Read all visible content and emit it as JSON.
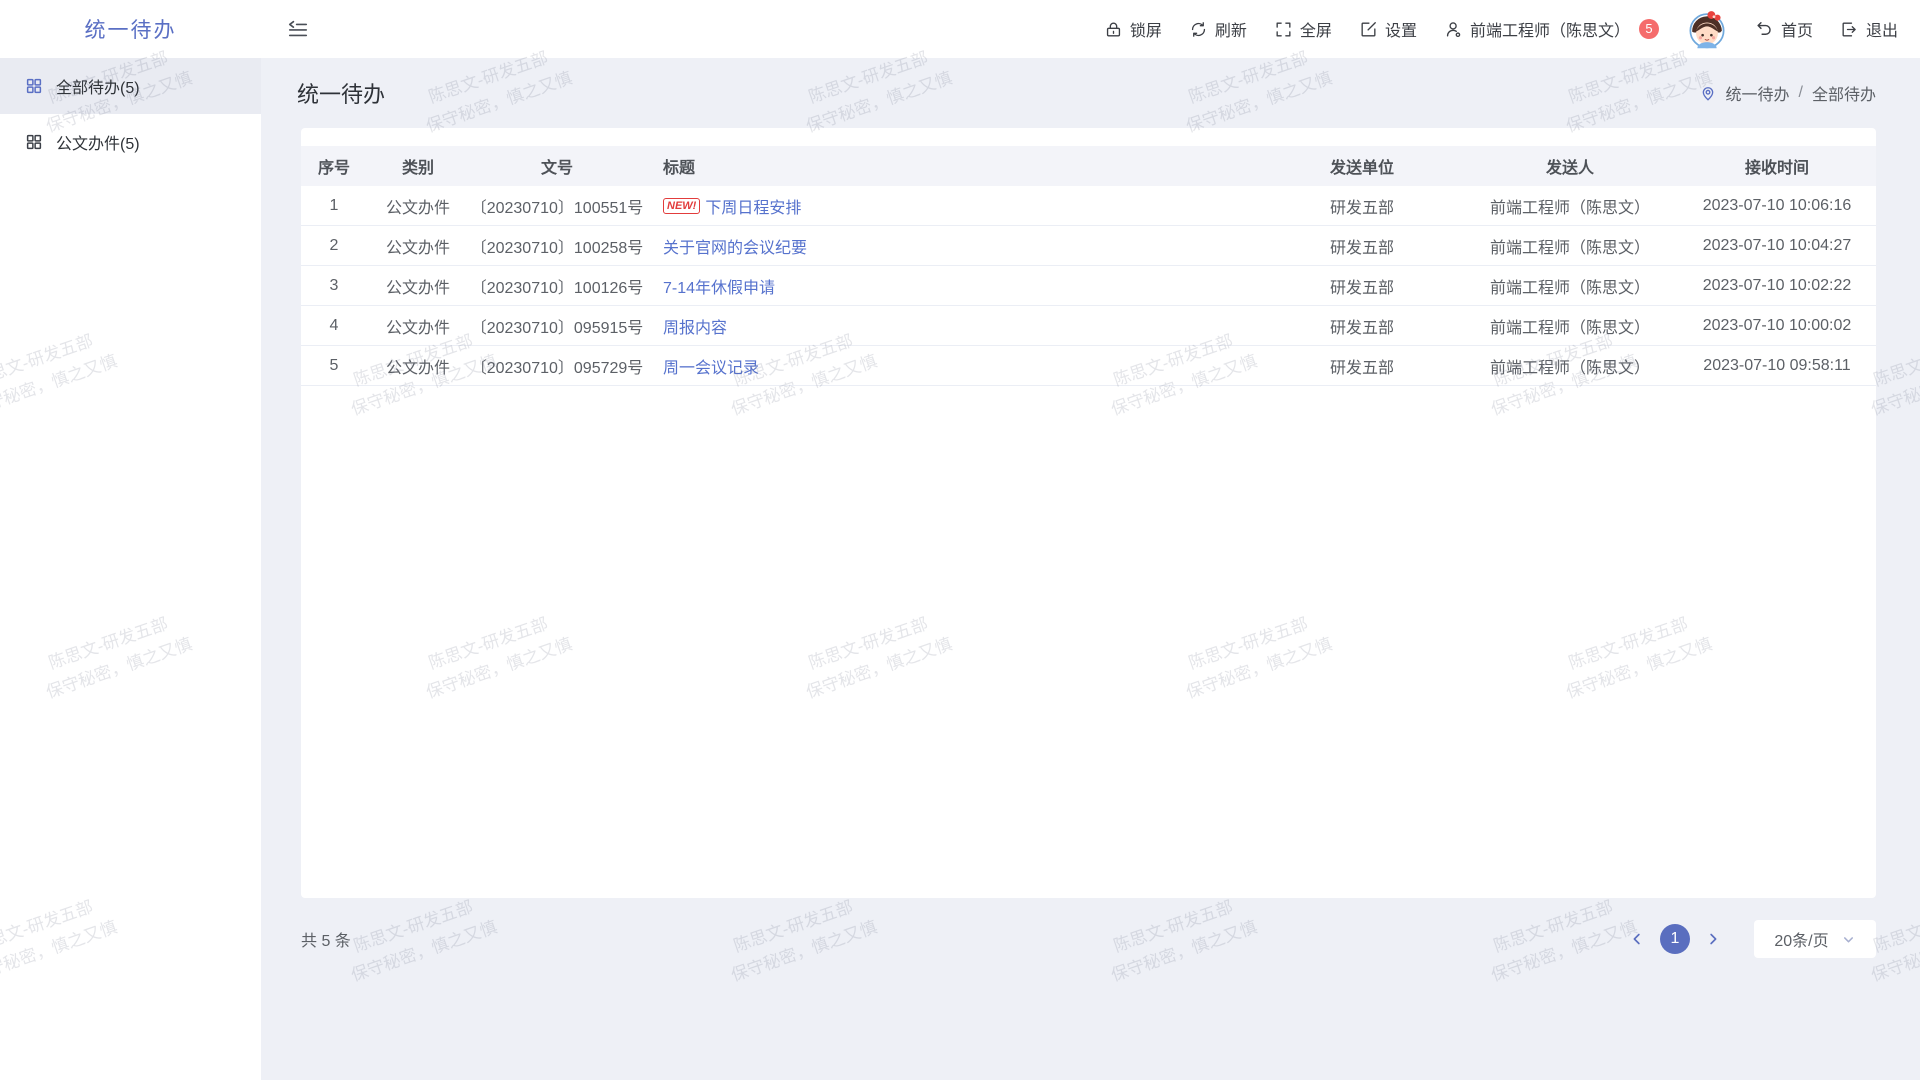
{
  "app": {
    "logo": "统一待办"
  },
  "toolbar": {
    "lock": "锁屏",
    "refresh": "刷新",
    "fullscreen": "全屏",
    "settings": "设置",
    "user": "前端工程师（陈思文）",
    "user_badge": "5",
    "home": "首页",
    "logout": "退出"
  },
  "sidebar": {
    "items": [
      {
        "label": "全部待办(5)",
        "active": true
      },
      {
        "label": "公文办件(5)",
        "active": false
      }
    ]
  },
  "main": {
    "title": "统一待办",
    "breadcrumb": {
      "root": "统一待办",
      "separator": "/",
      "current": "全部待办"
    },
    "table": {
      "columns": [
        "序号",
        "类别",
        "文号",
        "标题",
        "发送单位",
        "发送人",
        "接收时间"
      ],
      "rows": [
        {
          "no": "1",
          "category": "公文办件",
          "doc": "〔20230710〕100551号",
          "new": true,
          "title": "下周日程安排",
          "unit": "研发五部",
          "sender": "前端工程师（陈思文）",
          "time": "2023-07-10 10:06:16"
        },
        {
          "no": "2",
          "category": "公文办件",
          "doc": "〔20230710〕100258号",
          "new": false,
          "title": "关于官网的会议纪要",
          "unit": "研发五部",
          "sender": "前端工程师（陈思文）",
          "time": "2023-07-10 10:04:27"
        },
        {
          "no": "3",
          "category": "公文办件",
          "doc": "〔20230710〕100126号",
          "new": false,
          "title": "7-14年休假申请",
          "unit": "研发五部",
          "sender": "前端工程师（陈思文）",
          "time": "2023-07-10 10:02:22"
        },
        {
          "no": "4",
          "category": "公文办件",
          "doc": "〔20230710〕095915号",
          "new": false,
          "title": "周报内容",
          "unit": "研发五部",
          "sender": "前端工程师（陈思文）",
          "time": "2023-07-10 10:00:02"
        },
        {
          "no": "5",
          "category": "公文办件",
          "doc": "〔20230710〕095729号",
          "new": false,
          "title": "周一会议记录",
          "unit": "研发五部",
          "sender": "前端工程师（陈思文）",
          "time": "2023-07-10 09:58:11"
        }
      ],
      "new_badge_text": "NEW!"
    },
    "footer": {
      "total": "共 5 条",
      "current_page": "1",
      "page_size": "20条/页"
    }
  },
  "watermark": {
    "line1": "陈思文-研发五部",
    "line2": "保守秘密，慎之又慎"
  },
  "colors": {
    "accent": "#5a6fc4",
    "link": "#5672cd",
    "badge": "#f56c6c",
    "new_badge": "#e23c3c",
    "page_bg": "#eef0f6",
    "table_header_bg": "#f3f4f9",
    "pager_active_bg": "#5a6ebf"
  }
}
